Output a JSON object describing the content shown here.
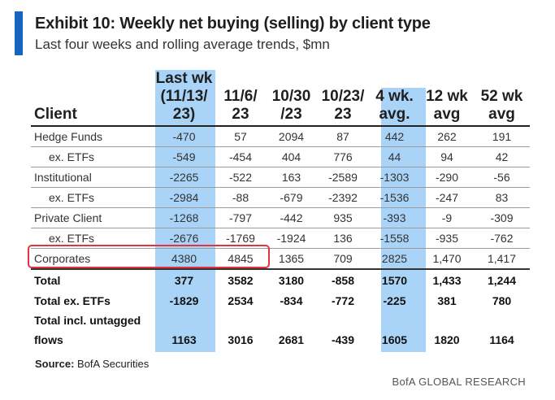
{
  "header": {
    "title": "Exhibit 10: Weekly net buying (selling) by client type",
    "subtitle": "Last four weeks and rolling average trends, $mn"
  },
  "table": {
    "client_header": "Client",
    "columns": [
      [
        "Last wk",
        "(11/13/",
        "23)"
      ],
      [
        "11/6/",
        "23"
      ],
      [
        "10/30",
        "/23"
      ],
      [
        "10/23/",
        "23"
      ],
      [
        "4 wk.",
        "avg."
      ],
      [
        "12 wk",
        "avg"
      ],
      [
        "52 wk",
        "avg"
      ]
    ],
    "rows": [
      {
        "label": "Hedge Funds",
        "values": [
          "-470",
          "57",
          "2094",
          "87",
          "442",
          "262",
          "191"
        ]
      },
      {
        "label": "ex. ETFs",
        "values": [
          "-549",
          "-454",
          "404",
          "776",
          "44",
          "94",
          "42"
        ]
      },
      {
        "label": "Institutional",
        "values": [
          "-2265",
          "-522",
          "163",
          "-2589",
          "-1303",
          "-290",
          "-56"
        ]
      },
      {
        "label": "ex. ETFs",
        "values": [
          "-2984",
          "-88",
          "-679",
          "-2392",
          "-1536",
          "-247",
          "83"
        ]
      },
      {
        "label": "Private Client",
        "values": [
          "-1268",
          "-797",
          "-442",
          "935",
          "-393",
          "-9",
          "-309"
        ]
      },
      {
        "label": "ex. ETFs",
        "values": [
          "-2676",
          "-1769",
          "-1924",
          "136",
          "-1558",
          "-935",
          "-762"
        ]
      },
      {
        "label": "Corporates",
        "values": [
          "4380",
          "4845",
          "1365",
          "709",
          "2825",
          "1,470",
          "1,417"
        ]
      }
    ],
    "totals": [
      {
        "label": "Total",
        "values": [
          "377",
          "3582",
          "3180",
          "-858",
          "1570",
          "1,433",
          "1,244"
        ]
      },
      {
        "label": "Total ex. ETFs",
        "values": [
          "-1829",
          "2534",
          "-834",
          "-772",
          "-225",
          "381",
          "780"
        ]
      },
      {
        "label_line1": "Total incl. untagged",
        "label_line2": "flows",
        "values": [
          "1163",
          "3016",
          "2681",
          "-439",
          "1605",
          "1820",
          "1164"
        ]
      }
    ]
  },
  "footer": {
    "source_label": "Source:",
    "source_text": "BofA Securities",
    "brand": "BofA GLOBAL RESEARCH"
  },
  "colors": {
    "accent": "#1565c0",
    "highlight": "#a9d4f7",
    "callout_box": "#e2343f"
  }
}
